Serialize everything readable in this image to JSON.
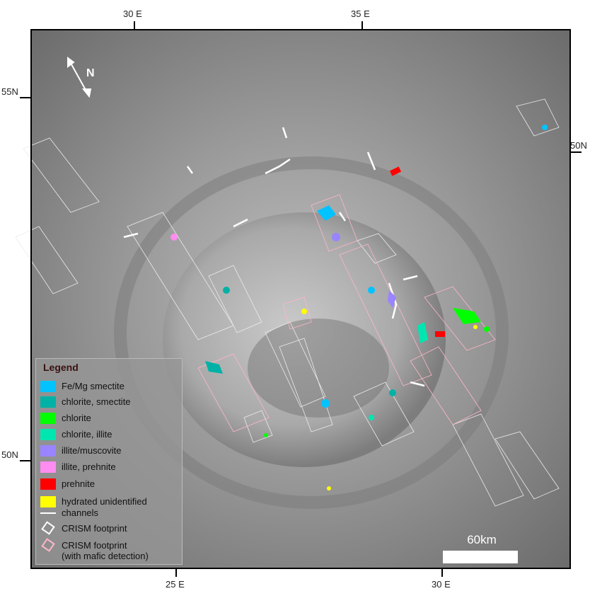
{
  "map": {
    "north_label": "N",
    "scale_label": "60km",
    "top_labels": [
      "30 E",
      "35 E"
    ],
    "bottom_labels": [
      "25 E",
      "30 E"
    ],
    "left_labels": [
      "55N",
      "50N"
    ],
    "right_labels": [
      "50N"
    ]
  },
  "legend": {
    "title": "Legend",
    "items": [
      {
        "label": "Fe/Mg smectite",
        "color": "#00c3ff",
        "symbol": "swatch"
      },
      {
        "label": "chlorite, smectite",
        "color": "#00b2a6",
        "symbol": "swatch"
      },
      {
        "label": "chlorite",
        "color": "#00ff00",
        "symbol": "swatch"
      },
      {
        "label": "chlorite, illite",
        "color": "#00e6b0",
        "symbol": "swatch"
      },
      {
        "label": "illite/muscovite",
        "color": "#9a84ff",
        "symbol": "swatch"
      },
      {
        "label": "illite, prehnite",
        "color": "#ff8cf0",
        "symbol": "swatch"
      },
      {
        "label": "prehnite",
        "color": "#ff0000",
        "symbol": "swatch"
      },
      {
        "label": "hydrated unidentified",
        "color": "#ffff00",
        "symbol": "swatch"
      },
      {
        "label": "channels",
        "color": "#ffffff",
        "symbol": "line"
      },
      {
        "label": "CRISM footprint",
        "color": "#ffffff",
        "symbol": "outline"
      },
      {
        "label": "CRISM footprint\n(with mafic detection)",
        "color": "#ffb6c8",
        "symbol": "outline"
      }
    ]
  }
}
